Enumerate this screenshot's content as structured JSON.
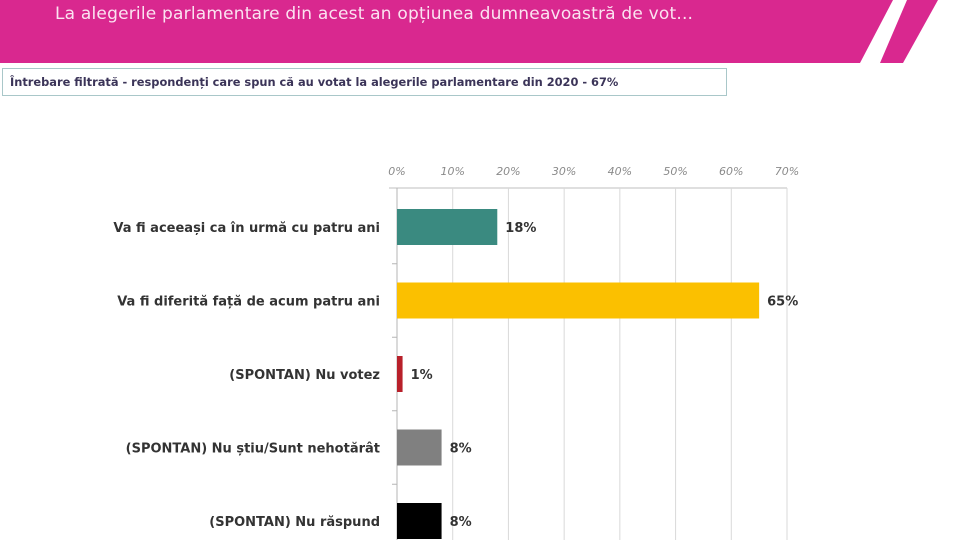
{
  "header": {
    "title": "La alegerile parlamentare  din acest an opțiunea  dumneavoastră  de vot...",
    "band_color": "#d9288f"
  },
  "filter_note": "Întrebare filtrată - respondenți care spun că au votat la alegerile parlamentare din 2020 - 67%",
  "chart_data": {
    "type": "bar",
    "orientation": "horizontal",
    "title": "La alegerile parlamentare din acest an opțiunea dumneavoastră de vot...",
    "xlabel": "",
    "ylabel": "",
    "xlim": [
      0,
      70
    ],
    "x_ticks": [
      0,
      10,
      20,
      30,
      40,
      50,
      60,
      70
    ],
    "x_tick_labels": [
      "0%",
      "10%",
      "20%",
      "30%",
      "40%",
      "50%",
      "60%",
      "70%"
    ],
    "x_axis_position": "top",
    "grid": true,
    "legend": "none",
    "categories": [
      "Va fi aceeași ca în urmă cu patru ani",
      "Va fi diferită față de acum patru ani",
      "(SPONTAN) Nu votez",
      "(SPONTAN) Nu știu/Sunt nehotărât",
      "(SPONTAN) Nu răspund"
    ],
    "values": [
      18,
      65,
      1,
      8,
      8
    ],
    "value_labels": [
      "18%",
      "65%",
      "1%",
      "8%",
      "8%"
    ],
    "colors": [
      "#3a8a80",
      "#fbc000",
      "#b8202a",
      "#808080",
      "#000000"
    ]
  }
}
